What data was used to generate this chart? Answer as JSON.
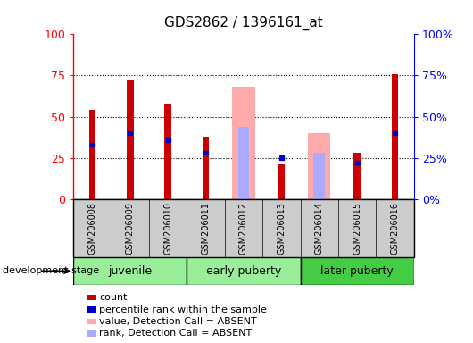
{
  "title": "GDS2862 / 1396161_at",
  "samples": [
    "GSM206008",
    "GSM206009",
    "GSM206010",
    "GSM206011",
    "GSM206012",
    "GSM206013",
    "GSM206014",
    "GSM206015",
    "GSM206016"
  ],
  "count_values": [
    54,
    72,
    58,
    38,
    0,
    21,
    0,
    28,
    76
  ],
  "rank_values": [
    33,
    40,
    36,
    28,
    0,
    25,
    0,
    22,
    40
  ],
  "absent_value_values": [
    0,
    0,
    0,
    0,
    68,
    0,
    40,
    0,
    0
  ],
  "absent_rank_values": [
    0,
    0,
    0,
    0,
    44,
    0,
    28,
    0,
    0
  ],
  "ylim": [
    0,
    100
  ],
  "yticks": [
    0,
    25,
    50,
    75,
    100
  ],
  "count_color": "#cc0000",
  "rank_color": "#0000cc",
  "absent_value_color": "#ffaaaa",
  "absent_rank_color": "#aaaaff",
  "xlabel_area_color": "#cccccc",
  "group_defs": [
    {
      "label": "juvenile",
      "start": 0,
      "end": 3,
      "color": "#99ee99"
    },
    {
      "label": "early puberty",
      "start": 3,
      "end": 6,
      "color": "#99ee99"
    },
    {
      "label": "later puberty",
      "start": 6,
      "end": 9,
      "color": "#44cc44"
    }
  ],
  "legend_items": [
    {
      "label": "count",
      "color": "#cc0000"
    },
    {
      "label": "percentile rank within the sample",
      "color": "#0000cc"
    },
    {
      "label": "value, Detection Call = ABSENT",
      "color": "#ffaaaa"
    },
    {
      "label": "rank, Detection Call = ABSENT",
      "color": "#aaaaff"
    }
  ],
  "dev_stage_label": "development stage"
}
